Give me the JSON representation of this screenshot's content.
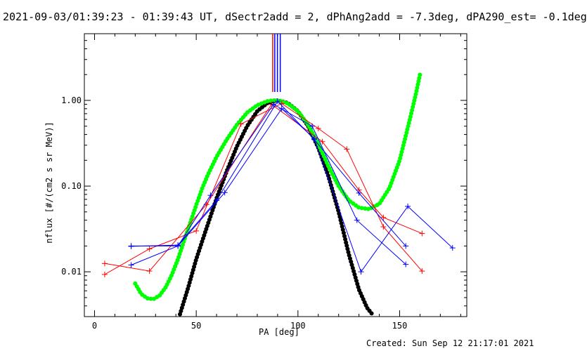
{
  "header": {
    "title": "2021-09-03/01:39:23 - 01:39:43 UT, dSectr2add = 2, dPhAng2add = -7.3deg, dPA290_est= -0.1deg"
  },
  "footer": {
    "created": "Created: Sun Sep 12 21:17:01 2021"
  },
  "chart_data": {
    "type": "line",
    "title": "2021-09-03/01:39:23 - 01:39:43 UT, dSectr2add = 2, dPhAng2add = -7.3deg, dPA290_est= -0.1deg",
    "xlabel": "PA [deg]",
    "ylabel": "nflux [#/(cm2 s sr MeV)]",
    "xlim": [
      -5,
      183
    ],
    "ylim": [
      0.003,
      6.0
    ],
    "ylog": true,
    "grid": false,
    "x_ticks": [
      0,
      50,
      100,
      150
    ],
    "x_tick_labels": [
      "0",
      "50",
      "100",
      "150"
    ],
    "y_ticks": [
      0.01,
      0.1,
      1.0
    ],
    "y_tick_labels": [
      "0.01",
      "0.10",
      "1.00"
    ],
    "colors": {
      "red": "#ff0000",
      "blue": "#0000ff",
      "black_fit": "#000000",
      "green_fit": "#00ff00"
    },
    "vertical_markers": [
      {
        "color": "#ff0000",
        "x": 87.6
      },
      {
        "color": "#0000ff",
        "x": 88.6
      },
      {
        "color": "#0000ff",
        "x": 89.9
      },
      {
        "color": "#0000ff",
        "x": 91.3
      }
    ],
    "series": [
      {
        "color": "#ff0000",
        "marker": "+",
        "x": [
          5,
          27,
          50,
          72,
          92,
          110,
          124,
          142,
          161
        ],
        "y": [
          0.0093,
          0.0185,
          0.03,
          0.53,
          0.92,
          0.47,
          0.27,
          0.0335,
          0.0102
        ]
      },
      {
        "color": "#ff0000",
        "marker": "+",
        "x": [
          5,
          27,
          55,
          87,
          112,
          130,
          142,
          161
        ],
        "y": [
          0.0125,
          0.0102,
          0.061,
          0.9,
          0.33,
          0.09,
          0.043,
          0.028
        ]
      },
      {
        "color": "#0000ff",
        "marker": "+",
        "x": [
          18,
          41,
          57,
          88,
          107,
          129,
          153
        ],
        "y": [
          0.012,
          0.02,
          0.078,
          0.9,
          0.5,
          0.04,
          0.0122
        ]
      },
      {
        "color": "#0000ff",
        "marker": "+",
        "x": [
          18,
          41,
          64,
          92,
          108,
          131,
          154,
          176
        ],
        "y": [
          0.02,
          0.02,
          0.084,
          0.8,
          0.36,
          0.01,
          0.058,
          0.019
        ]
      },
      {
        "color": "#0000ff",
        "marker": "+",
        "x": [
          18,
          41,
          60,
          90,
          108,
          130,
          153
        ],
        "y": [
          0.0198,
          0.0205,
          0.068,
          0.98,
          0.35,
          0.083,
          0.02
        ]
      }
    ],
    "fits": [
      {
        "color": "#000000",
        "style": "dots",
        "x": [
          42,
          46,
          50,
          55,
          60,
          65,
          70,
          75,
          80,
          85,
          90,
          95,
          100,
          105,
          110,
          115,
          120,
          125,
          130,
          134,
          137
        ],
        "y": [
          0.0032,
          0.0065,
          0.014,
          0.032,
          0.072,
          0.15,
          0.29,
          0.5,
          0.75,
          0.93,
          1.0,
          0.93,
          0.75,
          0.5,
          0.28,
          0.13,
          0.05,
          0.016,
          0.0062,
          0.0038,
          0.0031
        ]
      },
      {
        "color": "#00ff00",
        "style": "dots",
        "x": [
          20,
          23,
          26,
          29,
          32,
          35,
          38,
          41,
          44,
          47,
          50,
          53,
          56,
          60,
          65,
          70,
          75,
          80,
          85,
          88,
          91,
          95,
          100,
          105,
          110,
          115,
          120,
          125,
          130,
          135,
          140,
          145,
          150,
          155,
          158,
          160
        ],
        "y": [
          0.0073,
          0.0055,
          0.0049,
          0.0048,
          0.0053,
          0.0066,
          0.0092,
          0.014,
          0.023,
          0.037,
          0.06,
          0.095,
          0.14,
          0.22,
          0.35,
          0.52,
          0.72,
          0.88,
          0.98,
          1.0,
          0.99,
          0.92,
          0.75,
          0.52,
          0.31,
          0.17,
          0.1,
          0.068,
          0.056,
          0.054,
          0.062,
          0.095,
          0.2,
          0.6,
          1.2,
          2.0
        ]
      }
    ]
  }
}
